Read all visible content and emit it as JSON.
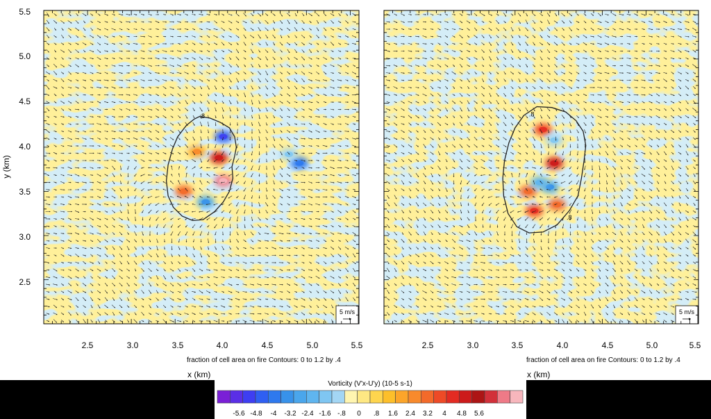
{
  "colors": {
    "background": "#ffffff",
    "bottom_bar": "#000000",
    "plot_yellow": "#fff09a",
    "plot_lightblue": "#a9d9ee",
    "plot_frame": "#000000",
    "arrows": "#000000"
  },
  "colorbar": {
    "title": "Vorticity (V'x-U'y)  (10-5 s-1)",
    "labels": [
      "-5.6",
      "-4.8",
      "-4",
      "-3.2",
      "-2.4",
      "-1.6",
      "-.8",
      "0",
      ".8",
      "1.6",
      "2.4",
      "3.2",
      "4",
      "4.8",
      "5.6"
    ],
    "colors": [
      "#7a1fd6",
      "#5a2fe6",
      "#3e3ef2",
      "#2f5ff2",
      "#2e79ee",
      "#3892ea",
      "#4aa6ec",
      "#5fb5ef",
      "#7fc6f2",
      "#a3d6f4",
      "#fff5b0",
      "#fee883",
      "#fed54e",
      "#fdbf2a",
      "#fca52a",
      "#f88a2c",
      "#f36a2a",
      "#ee4a26",
      "#e32b22",
      "#cc1b1b",
      "#ad1515",
      "#d2303a",
      "#ef7a87",
      "#f7b6bc"
    ]
  },
  "chart_data": [
    {
      "type": "heatmap",
      "panel": "left",
      "xlabel": "x (km)",
      "ylabel": "y (km)",
      "xlim": [
        2.0,
        5.6
      ],
      "ylim": [
        2.0,
        5.55
      ],
      "x_ticks": [
        "2.5",
        "3.0",
        "3.5",
        "4.0",
        "4.5",
        "5.0",
        "5.5"
      ],
      "y_ticks": [
        "2.5",
        "3.0",
        "3.5",
        "4.0",
        "4.5",
        "5.0",
        "5.5"
      ],
      "note": "fraction of cell area on fire Contours: 0 to 1.2 by .4",
      "contour_label": ".8",
      "reference_vector": "5 m/s",
      "fire_contour": [
        [
          3.78,
          4.35
        ],
        [
          3.9,
          4.33
        ],
        [
          4.02,
          4.28
        ],
        [
          4.12,
          4.22
        ],
        [
          4.18,
          4.12
        ],
        [
          4.2,
          4.0
        ],
        [
          4.18,
          3.9
        ],
        [
          4.15,
          3.78
        ],
        [
          4.16,
          3.65
        ],
        [
          4.12,
          3.5
        ],
        [
          4.05,
          3.38
        ],
        [
          3.95,
          3.27
        ],
        [
          3.82,
          3.18
        ],
        [
          3.7,
          3.17
        ],
        [
          3.58,
          3.22
        ],
        [
          3.48,
          3.32
        ],
        [
          3.42,
          3.45
        ],
        [
          3.4,
          3.62
        ],
        [
          3.42,
          3.8
        ],
        [
          3.47,
          3.98
        ],
        [
          3.53,
          4.12
        ],
        [
          3.63,
          4.25
        ],
        [
          3.72,
          4.32
        ]
      ],
      "vortices": [
        {
          "x": 4.05,
          "y": 4.12,
          "value": -4.8
        },
        {
          "x": 4.0,
          "y": 3.88,
          "value": 4.0
        },
        {
          "x": 4.05,
          "y": 3.62,
          "value": 5.6
        },
        {
          "x": 3.85,
          "y": 3.38,
          "value": -3.2
        },
        {
          "x": 3.6,
          "y": 3.5,
          "value": 2.4
        },
        {
          "x": 3.75,
          "y": 3.95,
          "value": 1.6
        },
        {
          "x": 4.92,
          "y": 3.82,
          "value": -4.0
        },
        {
          "x": 4.8,
          "y": 3.92,
          "value": -1.6
        }
      ]
    },
    {
      "type": "heatmap",
      "panel": "right",
      "xlabel": "x (km)",
      "ylabel": "",
      "xlim": [
        2.0,
        5.6
      ],
      "ylim": [
        2.0,
        5.55
      ],
      "x_ticks": [
        "2.5",
        "3.0",
        "3.5",
        "4.0",
        "4.5",
        "5.0",
        "5.5"
      ],
      "y_ticks": [],
      "note": "fraction of cell area on fire Contours: 0 to 1.2 by .4",
      "contour_label": ".8",
      "reference_vector": "5 m/s",
      "fire_contour": [
        [
          3.75,
          4.46
        ],
        [
          3.92,
          4.45
        ],
        [
          4.08,
          4.4
        ],
        [
          4.2,
          4.3
        ],
        [
          4.28,
          4.18
        ],
        [
          4.31,
          4.02
        ],
        [
          4.29,
          3.85
        ],
        [
          4.26,
          3.65
        ],
        [
          4.22,
          3.45
        ],
        [
          4.12,
          3.28
        ],
        [
          3.98,
          3.12
        ],
        [
          3.82,
          3.04
        ],
        [
          3.66,
          3.03
        ],
        [
          3.52,
          3.1
        ],
        [
          3.42,
          3.25
        ],
        [
          3.37,
          3.45
        ],
        [
          3.36,
          3.65
        ],
        [
          3.38,
          3.85
        ],
        [
          3.43,
          4.05
        ],
        [
          3.5,
          4.22
        ],
        [
          3.6,
          4.36
        ]
      ],
      "vortices": [
        {
          "x": 3.82,
          "y": 4.2,
          "value": 3.2
        },
        {
          "x": 3.95,
          "y": 3.82,
          "value": 4.0
        },
        {
          "x": 3.9,
          "y": 3.55,
          "value": -3.2
        },
        {
          "x": 3.65,
          "y": 3.5,
          "value": 2.4
        },
        {
          "x": 3.98,
          "y": 3.35,
          "value": 2.4
        },
        {
          "x": 3.72,
          "y": 3.28,
          "value": 3.2
        },
        {
          "x": 3.78,
          "y": 3.6,
          "value": -2.4
        },
        {
          "x": 3.95,
          "y": 4.08,
          "value": -1.6
        }
      ]
    }
  ]
}
